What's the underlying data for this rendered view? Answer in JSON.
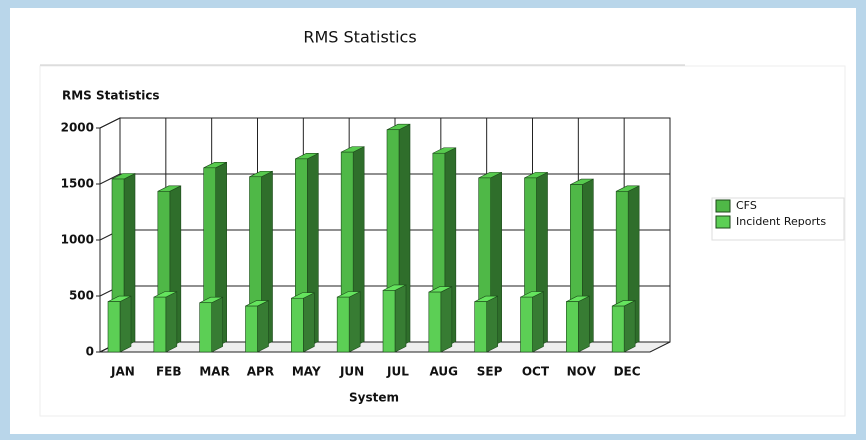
{
  "header": {
    "title": "RMS Statistics"
  },
  "chart_data": {
    "type": "bar3d",
    "title": "RMS Statistics",
    "xlabel": "System",
    "categories": [
      "JAN",
      "FEB",
      "MAR",
      "APR",
      "MAY",
      "JUN",
      "JUL",
      "AUG",
      "SEP",
      "OCT",
      "NOV",
      "DEC"
    ],
    "series": [
      {
        "name": "CFS",
        "color": "#4fb847",
        "values": [
          1500,
          1390,
          1600,
          1520,
          1680,
          1740,
          1940,
          1730,
          1510,
          1510,
          1450,
          1390
        ]
      },
      {
        "name": "Incident Reports",
        "color": "#5ccf55",
        "values": [
          450,
          490,
          440,
          410,
          480,
          490,
          550,
          535,
          450,
          490,
          450,
          410
        ]
      }
    ],
    "ylim": [
      0,
      2000
    ],
    "yticks": [
      0,
      500,
      1000,
      1500,
      2000
    ],
    "grid": true,
    "legend": "right"
  }
}
